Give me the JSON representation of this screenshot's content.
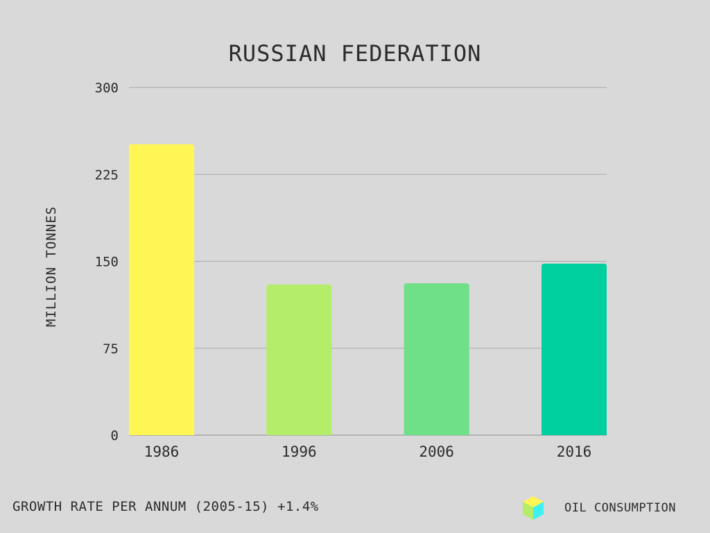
{
  "chart_data": {
    "type": "bar",
    "title": "RUSSIAN FEDERATION",
    "xlabel": "",
    "ylabel": "MILLION TONNES",
    "categories": [
      "1986",
      "1996",
      "2006",
      "2016"
    ],
    "series": [
      {
        "name": "OIL CONSUMPTION",
        "values": [
          251,
          130,
          131,
          148
        ]
      }
    ],
    "bar_colors": [
      "#fff655",
      "#b4ed6a",
      "#6ee087",
      "#00cfa0"
    ],
    "ylim": [
      0,
      300
    ],
    "yticks": [
      "0",
      "75",
      "150",
      "225",
      "300"
    ],
    "grid": true,
    "legend_position": "bottom-right"
  },
  "footer": {
    "growth_note": "GROWTH RATE PER ANNUM (2005-15) +1.4%"
  },
  "legend": {
    "label": "OIL CONSUMPTION",
    "icon": "cube-icon",
    "colors": {
      "top": "#fff655",
      "left": "#b4ed6a",
      "right": "#3ff0f0"
    }
  }
}
